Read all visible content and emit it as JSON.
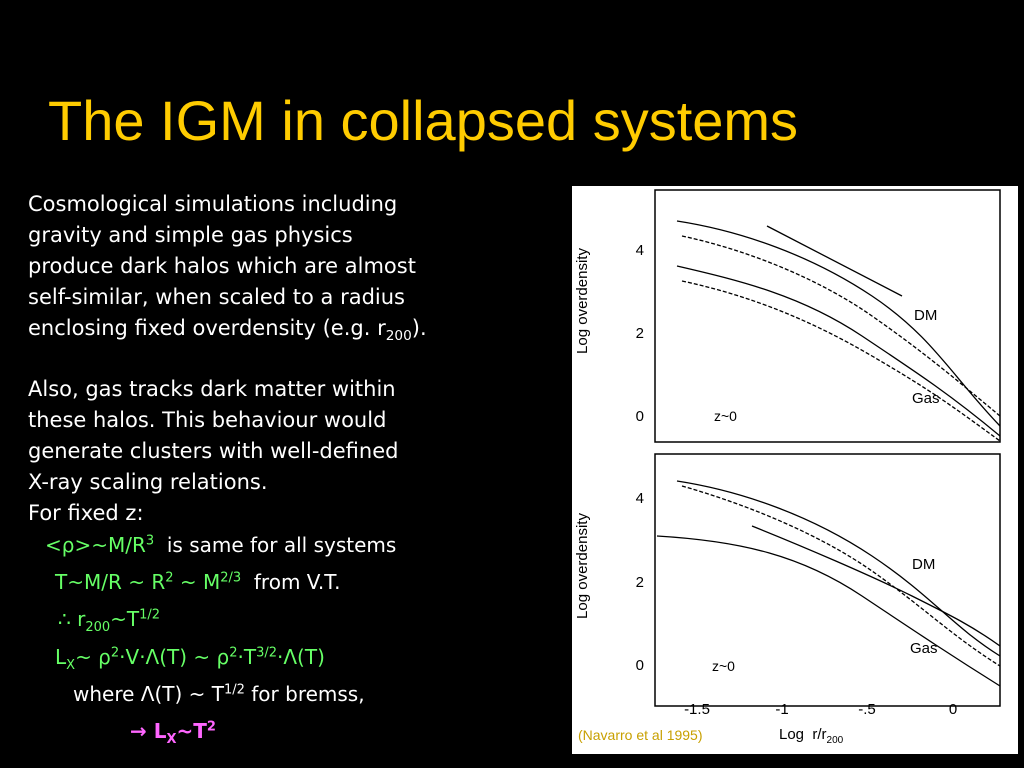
{
  "title": "The IGM in collapsed systems",
  "paragraphs": [
    [
      "Cosmological simulations including",
      "gravity and simple gas physics",
      "produce dark halos which are almost",
      "self-similar, when scaled to a radius",
      "enclosing fixed overdensity (e.g. r",
      "200",
      ")."
    ],
    [
      "Also, gas tracks dark matter within",
      "these halos. This behaviour would",
      "generate clusters with well-defined",
      "X-ray scaling relations.",
      "For fixed z:"
    ]
  ],
  "relations": [
    [
      "<ρ>~M/R",
      "3",
      "  is same for all systems"
    ],
    [
      "T~M/R ~ R",
      "2",
      " ~ M",
      "2/3",
      "  from V.T."
    ],
    [
      "∴ r",
      "200",
      "~T",
      "1/2"
    ],
    [
      "L",
      "X",
      "~ ρ",
      "2",
      "·V·Λ(T) ~ ρ",
      "2",
      "·T",
      "3/2",
      "·Λ(T)"
    ],
    [
      "where Λ(T) ~ T",
      "1/2",
      " for bremss,"
    ],
    [
      "→ L",
      "X",
      "~T",
      "2"
    ]
  ],
  "figure": {
    "panels": [
      {
        "y_label": "Log overdensity",
        "y_ticks": [
          "4",
          "2",
          "0"
        ],
        "curve_labels": [
          "DM",
          "Gas"
        ],
        "redshift": "z~0"
      },
      {
        "y_label": "Log overdensity",
        "y_ticks": [
          "4",
          "2",
          "0"
        ],
        "curve_labels": [
          "DM",
          "Gas"
        ],
        "redshift": "z~0"
      }
    ],
    "x_ticks": [
      "-1.5",
      "-1",
      "-.5",
      "0"
    ],
    "x_label": [
      "Log  r/r",
      "200"
    ],
    "credit": "(Navarro et al 1995)"
  }
}
